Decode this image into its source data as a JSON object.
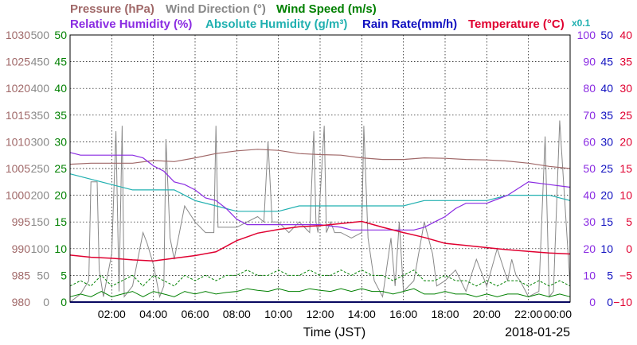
{
  "colors": {
    "pressure": "#a06868",
    "wind_direction": "#888888",
    "wind_speed": "#008000",
    "relative_humidity": "#8a2be2",
    "absolute_humidity": "#20b0b0",
    "rain_rate": "#1010c0",
    "temperature": "#e00030",
    "grid": "#000000"
  },
  "chart_data": {
    "type": "line",
    "title_parts": [
      {
        "key": "pressure",
        "text": "Pressure (hPa)"
      },
      {
        "key": "wind_direction",
        "text": "Wind Direction (°)"
      },
      {
        "key": "wind_speed",
        "text": "Wind Speed (m/s)"
      },
      {
        "key": "relative_humidity",
        "text": "Relative Humidity (%)"
      },
      {
        "key": "absolute_humidity",
        "text": "Absolute Humidity (g/m³)"
      },
      {
        "key": "rain_rate",
        "text": "Rain Rate(mm/h)"
      },
      {
        "key": "temperature",
        "text": "Temperature (°C)"
      }
    ],
    "scale_note": "x0.1",
    "xlabel": "Time (JST)",
    "date": "2018-01-25",
    "x_range": [
      0,
      24
    ],
    "x_ticks": [
      "02:00",
      "04:00",
      "06:00",
      "08:00",
      "10:00",
      "12:00",
      "14:00",
      "16:00",
      "18:00",
      "20:00",
      "22:00",
      "00:00"
    ],
    "x_tick_hours": [
      2,
      4,
      6,
      8,
      10,
      12,
      14,
      16,
      18,
      20,
      22,
      24
    ],
    "grid": true,
    "axes": {
      "pressure": {
        "range": [
          980,
          1030
        ],
        "ticks": [
          "980",
          "985",
          "990",
          "995",
          "1000",
          "1005",
          "1010",
          "1015",
          "1020",
          "1025",
          "1030"
        ]
      },
      "wind_direction": {
        "range": [
          0,
          500
        ],
        "ticks": [
          "0",
          "50",
          "100",
          "150",
          "200",
          "250",
          "300",
          "350",
          "400",
          "450",
          "500"
        ]
      },
      "wind_speed": {
        "range": [
          0,
          50
        ],
        "ticks": [
          "0",
          "5",
          "10",
          "15",
          "20",
          "25",
          "30",
          "35",
          "40",
          "45",
          "50"
        ]
      },
      "relative_humidity": {
        "range": [
          0,
          100
        ],
        "ticks": [
          "0",
          "10",
          "20",
          "30",
          "40",
          "50",
          "60",
          "70",
          "80",
          "90",
          "100"
        ]
      },
      "rain_rate": {
        "range": [
          0,
          50
        ],
        "ticks": [
          "0",
          "5",
          "10",
          "15",
          "20",
          "25",
          "30",
          "35",
          "40",
          "45",
          "50"
        ]
      },
      "temperature": {
        "range": [
          -10,
          40
        ],
        "ticks": [
          "−10",
          "−5",
          "0",
          "5",
          "10",
          "15",
          "20",
          "25",
          "30",
          "35",
          "40"
        ]
      }
    },
    "series": {
      "pressure": {
        "x": [
          0,
          1,
          2,
          3,
          4,
          5,
          6,
          7,
          8,
          9,
          10,
          11,
          12,
          13,
          14,
          15,
          16,
          17,
          18,
          19,
          20,
          21,
          22,
          23,
          24
        ],
        "y": [
          1005.8,
          1006,
          1006,
          1006,
          1006.5,
          1006.3,
          1007,
          1007.8,
          1008.3,
          1008.6,
          1008.4,
          1007.8,
          1007.6,
          1007.5,
          1007,
          1006.7,
          1006.7,
          1007,
          1006.9,
          1006.7,
          1006.6,
          1006.4,
          1006,
          1005.4,
          1005
        ]
      },
      "relative_humidity": {
        "x": [
          0,
          0.5,
          1,
          2,
          3,
          3.5,
          4,
          4.5,
          5,
          5.5,
          6,
          6.5,
          7,
          7.5,
          8,
          8.5,
          9,
          10,
          11,
          12,
          13,
          13.5,
          14,
          14.5,
          15,
          16,
          16.5,
          17,
          17.5,
          18,
          18.5,
          19,
          20,
          21,
          22,
          23,
          24
        ],
        "y": [
          56,
          55,
          55,
          55,
          55,
          54,
          51,
          49,
          45,
          44,
          42,
          39,
          38,
          35,
          31,
          29,
          29,
          29,
          29,
          29,
          28,
          27,
          27,
          27,
          27,
          27,
          27,
          28,
          30,
          32,
          35,
          37,
          37,
          40,
          45,
          44,
          43
        ]
      },
      "absolute_humidity_x10": {
        "x": [
          0,
          1,
          2,
          3,
          4,
          5,
          6,
          7,
          8,
          9,
          10,
          11,
          12,
          13,
          14,
          15,
          16,
          17,
          18,
          19,
          20,
          21,
          22,
          23,
          24
        ],
        "y": [
          24,
          23,
          22,
          21,
          21,
          21,
          19,
          18,
          17,
          17,
          17,
          18,
          18,
          18,
          18,
          18,
          18,
          19,
          19,
          19,
          19,
          20,
          20,
          20,
          19
        ]
      },
      "temperature": {
        "x": [
          0,
          1,
          2,
          3,
          4,
          5,
          6,
          7,
          8,
          9,
          10,
          11,
          12,
          13,
          14,
          15,
          16,
          17,
          18,
          19,
          20,
          21,
          22,
          23,
          24
        ],
        "y": [
          -1.2,
          -1.6,
          -1.8,
          -2.1,
          -2.3,
          -1.8,
          -1.3,
          -0.6,
          1.5,
          2.9,
          3.6,
          4.1,
          4.3,
          4.7,
          5.1,
          4.0,
          3.0,
          2.1,
          1.0,
          0.6,
          0.2,
          -0.2,
          -0.5,
          -0.8,
          -1.0
        ]
      },
      "wind_direction": {
        "x": [
          0,
          0.5,
          0.9,
          1.0,
          1.3,
          1.4,
          1.6,
          1.8,
          2.0,
          2.2,
          2.35,
          2.5,
          2.6,
          3.0,
          3.5,
          3.7,
          4.0,
          4.3,
          4.5,
          4.6,
          4.8,
          5.0,
          5.5,
          6.0,
          6.5,
          6.9,
          7.0,
          7.1,
          7.5,
          8.0,
          8.5,
          9.0,
          9.3,
          9.5,
          9.7,
          10.0,
          10.5,
          11.0,
          11.5,
          11.7,
          11.8,
          11.9,
          12.2,
          12.3,
          12.5,
          12.7,
          13.0,
          13.5,
          14.0,
          14.1,
          14.3,
          14.6,
          15.0,
          15.4,
          15.6,
          15.8,
          16.0,
          16.5,
          17.0,
          17.4,
          17.6,
          18.0,
          18.5,
          19.0,
          19.5,
          20.0,
          20.5,
          21.0,
          21.2,
          21.4,
          21.6,
          22.0,
          22.5,
          22.8,
          23.0,
          23.2,
          23.5,
          24.0
        ],
        "y": [
          0,
          15,
          40,
          225,
          225,
          60,
          10,
          50,
          90,
          320,
          20,
          330,
          10,
          30,
          130,
          110,
          70,
          10,
          30,
          305,
          120,
          80,
          180,
          150,
          130,
          130,
          330,
          140,
          140,
          140,
          150,
          160,
          150,
          300,
          150,
          150,
          130,
          150,
          130,
          320,
          150,
          130,
          330,
          130,
          150,
          130,
          130,
          120,
          130,
          330,
          120,
          40,
          10,
          120,
          30,
          150,
          20,
          40,
          150,
          90,
          30,
          40,
          60,
          20,
          80,
          30,
          100,
          40,
          80,
          50,
          40,
          10,
          20,
          310,
          10,
          20,
          340,
          30
        ]
      },
      "wind_speed_avg": {
        "x": [
          0,
          0.5,
          1,
          1.5,
          2,
          2.5,
          3,
          3.5,
          4,
          4.5,
          5,
          5.5,
          6,
          6.5,
          7,
          7.5,
          8,
          8.5,
          9,
          9.5,
          10,
          10.5,
          11,
          11.5,
          12,
          12.5,
          13,
          13.5,
          14,
          14.5,
          15,
          15.5,
          16,
          16.5,
          17,
          17.5,
          18,
          18.5,
          19,
          19.5,
          20,
          20.5,
          21,
          21.5,
          22,
          22.5,
          23,
          23.5,
          24
        ],
        "y": [
          1,
          1.5,
          1,
          2,
          1,
          1.5,
          2,
          1,
          2,
          1.5,
          1,
          2,
          1.5,
          2,
          1.5,
          1.8,
          2,
          2.5,
          2.2,
          2,
          2.5,
          2,
          2,
          2.5,
          2.2,
          2,
          2.5,
          2,
          2.5,
          2,
          2,
          1.5,
          2,
          2.5,
          1.5,
          1.5,
          2,
          1.5,
          1.5,
          1,
          1.5,
          1,
          1.5,
          1.5,
          1,
          1.5,
          1,
          1.5,
          1
        ]
      },
      "wind_speed_gust": {
        "x": [
          0,
          0.5,
          1,
          1.5,
          2,
          2.5,
          3,
          3.5,
          4,
          4.5,
          5,
          5.5,
          6,
          6.5,
          7,
          7.5,
          8,
          8.5,
          9,
          9.5,
          10,
          10.5,
          11,
          11.5,
          12,
          12.5,
          13,
          13.5,
          14,
          14.5,
          15,
          15.5,
          16,
          16.5,
          17,
          17.5,
          18,
          18.5,
          19,
          19.5,
          20,
          20.5,
          21,
          21.5,
          22,
          22.5,
          23,
          23.5,
          24
        ],
        "y": [
          3,
          4,
          3,
          5,
          3,
          4,
          5,
          3,
          5,
          4,
          3,
          5,
          4,
          5,
          4,
          5,
          5,
          6,
          5,
          5,
          6,
          5,
          5,
          6,
          5,
          5,
          6,
          5,
          6,
          5,
          5,
          4,
          5,
          6,
          4,
          4,
          5,
          4,
          4,
          3,
          4,
          3,
          4,
          4,
          3,
          4,
          3,
          4,
          3
        ]
      },
      "rain_rate": {
        "x": [
          0,
          24
        ],
        "y": [
          0,
          0
        ]
      }
    }
  }
}
